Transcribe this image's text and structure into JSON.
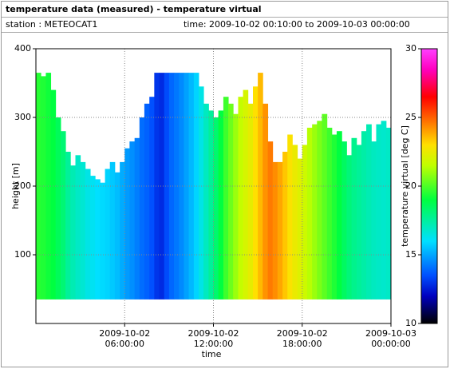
{
  "chart_data": {
    "type": "heatmap",
    "title": "temperature data (measured) - temperature virtual",
    "station": "station : METEOCAT1",
    "time_range": "time: 2009-10-02 00:10:00 to 2009-10-03 00:00:00",
    "xlabel": "time",
    "ylabel": "height [m]",
    "colorbar_label": "temperature virtual [deg C]",
    "x": [
      0.33,
      0.67,
      1.0,
      1.33,
      1.67,
      2.0,
      2.33,
      2.67,
      3.0,
      3.33,
      3.67,
      4.0,
      4.33,
      4.67,
      5.0,
      5.33,
      5.67,
      6.0,
      6.33,
      6.67,
      7.0,
      7.33,
      7.67,
      8.0,
      8.33,
      8.67,
      9.0,
      9.33,
      9.67,
      10.0,
      10.33,
      10.67,
      11.0,
      11.33,
      11.67,
      12.0,
      12.33,
      12.67,
      13.0,
      13.33,
      13.67,
      14.0,
      14.33,
      14.67,
      15.0,
      15.33,
      15.67,
      16.0,
      16.33,
      16.67,
      17.0,
      17.33,
      17.67,
      18.0,
      18.33,
      18.67,
      19.0,
      19.33,
      19.67,
      20.0,
      20.33,
      20.67,
      21.0,
      21.33,
      21.67,
      22.0,
      22.33,
      22.67,
      23.0,
      23.33,
      23.67,
      24.0
    ],
    "base": 35,
    "top": [
      365,
      360,
      365,
      340,
      300,
      280,
      250,
      230,
      245,
      235,
      225,
      215,
      210,
      205,
      225,
      235,
      220,
      235,
      255,
      265,
      270,
      300,
      320,
      330,
      365,
      365,
      365,
      365,
      365,
      365,
      365,
      365,
      365,
      345,
      320,
      310,
      300,
      310,
      330,
      320,
      305,
      330,
      340,
      320,
      345,
      365,
      320,
      265,
      235,
      235,
      250,
      275,
      260,
      240,
      260,
      285,
      290,
      295,
      305,
      285,
      275,
      280,
      265,
      245,
      270,
      260,
      280,
      290,
      265,
      290,
      295,
      285
    ],
    "values": [
      19.5,
      19.4,
      19.2,
      19.0,
      18.6,
      18.2,
      17.6,
      17.2,
      16.9,
      16.7,
      16.4,
      16.2,
      16.0,
      15.9,
      15.8,
      15.6,
      15.4,
      15.1,
      14.8,
      14.6,
      14.3,
      14.0,
      13.8,
      13.5,
      13.0,
      12.8,
      13.4,
      13.9,
      14.2,
      14.5,
      14.9,
      15.3,
      15.8,
      16.4,
      17.0,
      17.6,
      18.3,
      19.0,
      19.8,
      20.4,
      21.0,
      21.6,
      22.0,
      22.4,
      23.0,
      23.6,
      24.2,
      24.6,
      24.3,
      23.9,
      23.4,
      22.9,
      22.5,
      22.2,
      21.8,
      21.4,
      21.0,
      20.6,
      20.2,
      19.8,
      19.4,
      19.0,
      18.5,
      18.1,
      17.8,
      17.6,
      17.4,
      17.2,
      17.0,
      16.9,
      16.8,
      16.9
    ],
    "xlim": [
      0,
      24
    ],
    "xticks": [
      {
        "value": 6,
        "label": "2009-10-02 06:00:00"
      },
      {
        "value": 12,
        "label": "2009-10-02 12:00:00"
      },
      {
        "value": 18,
        "label": "2009-10-02 18:00:00"
      },
      {
        "value": 24,
        "label": "2009-10-03 00:00:00"
      }
    ],
    "ylim": [
      0,
      400
    ],
    "yticks": [
      100,
      200,
      300,
      400
    ],
    "clim": [
      10,
      30
    ],
    "cticks": [
      10,
      15,
      20,
      25,
      30
    ],
    "colormap": [
      [
        10,
        "#000000"
      ],
      [
        12,
        "#0000c0"
      ],
      [
        13.5,
        "#0050ff"
      ],
      [
        16,
        "#00e0ff"
      ],
      [
        19,
        "#00ff40"
      ],
      [
        21.5,
        "#c0ff00"
      ],
      [
        23,
        "#ffe000"
      ],
      [
        25,
        "#ff6000"
      ],
      [
        26.5,
        "#ff0000"
      ],
      [
        28.5,
        "#ff00c0"
      ],
      [
        30,
        "#ff40ff"
      ]
    ],
    "grid": true
  }
}
